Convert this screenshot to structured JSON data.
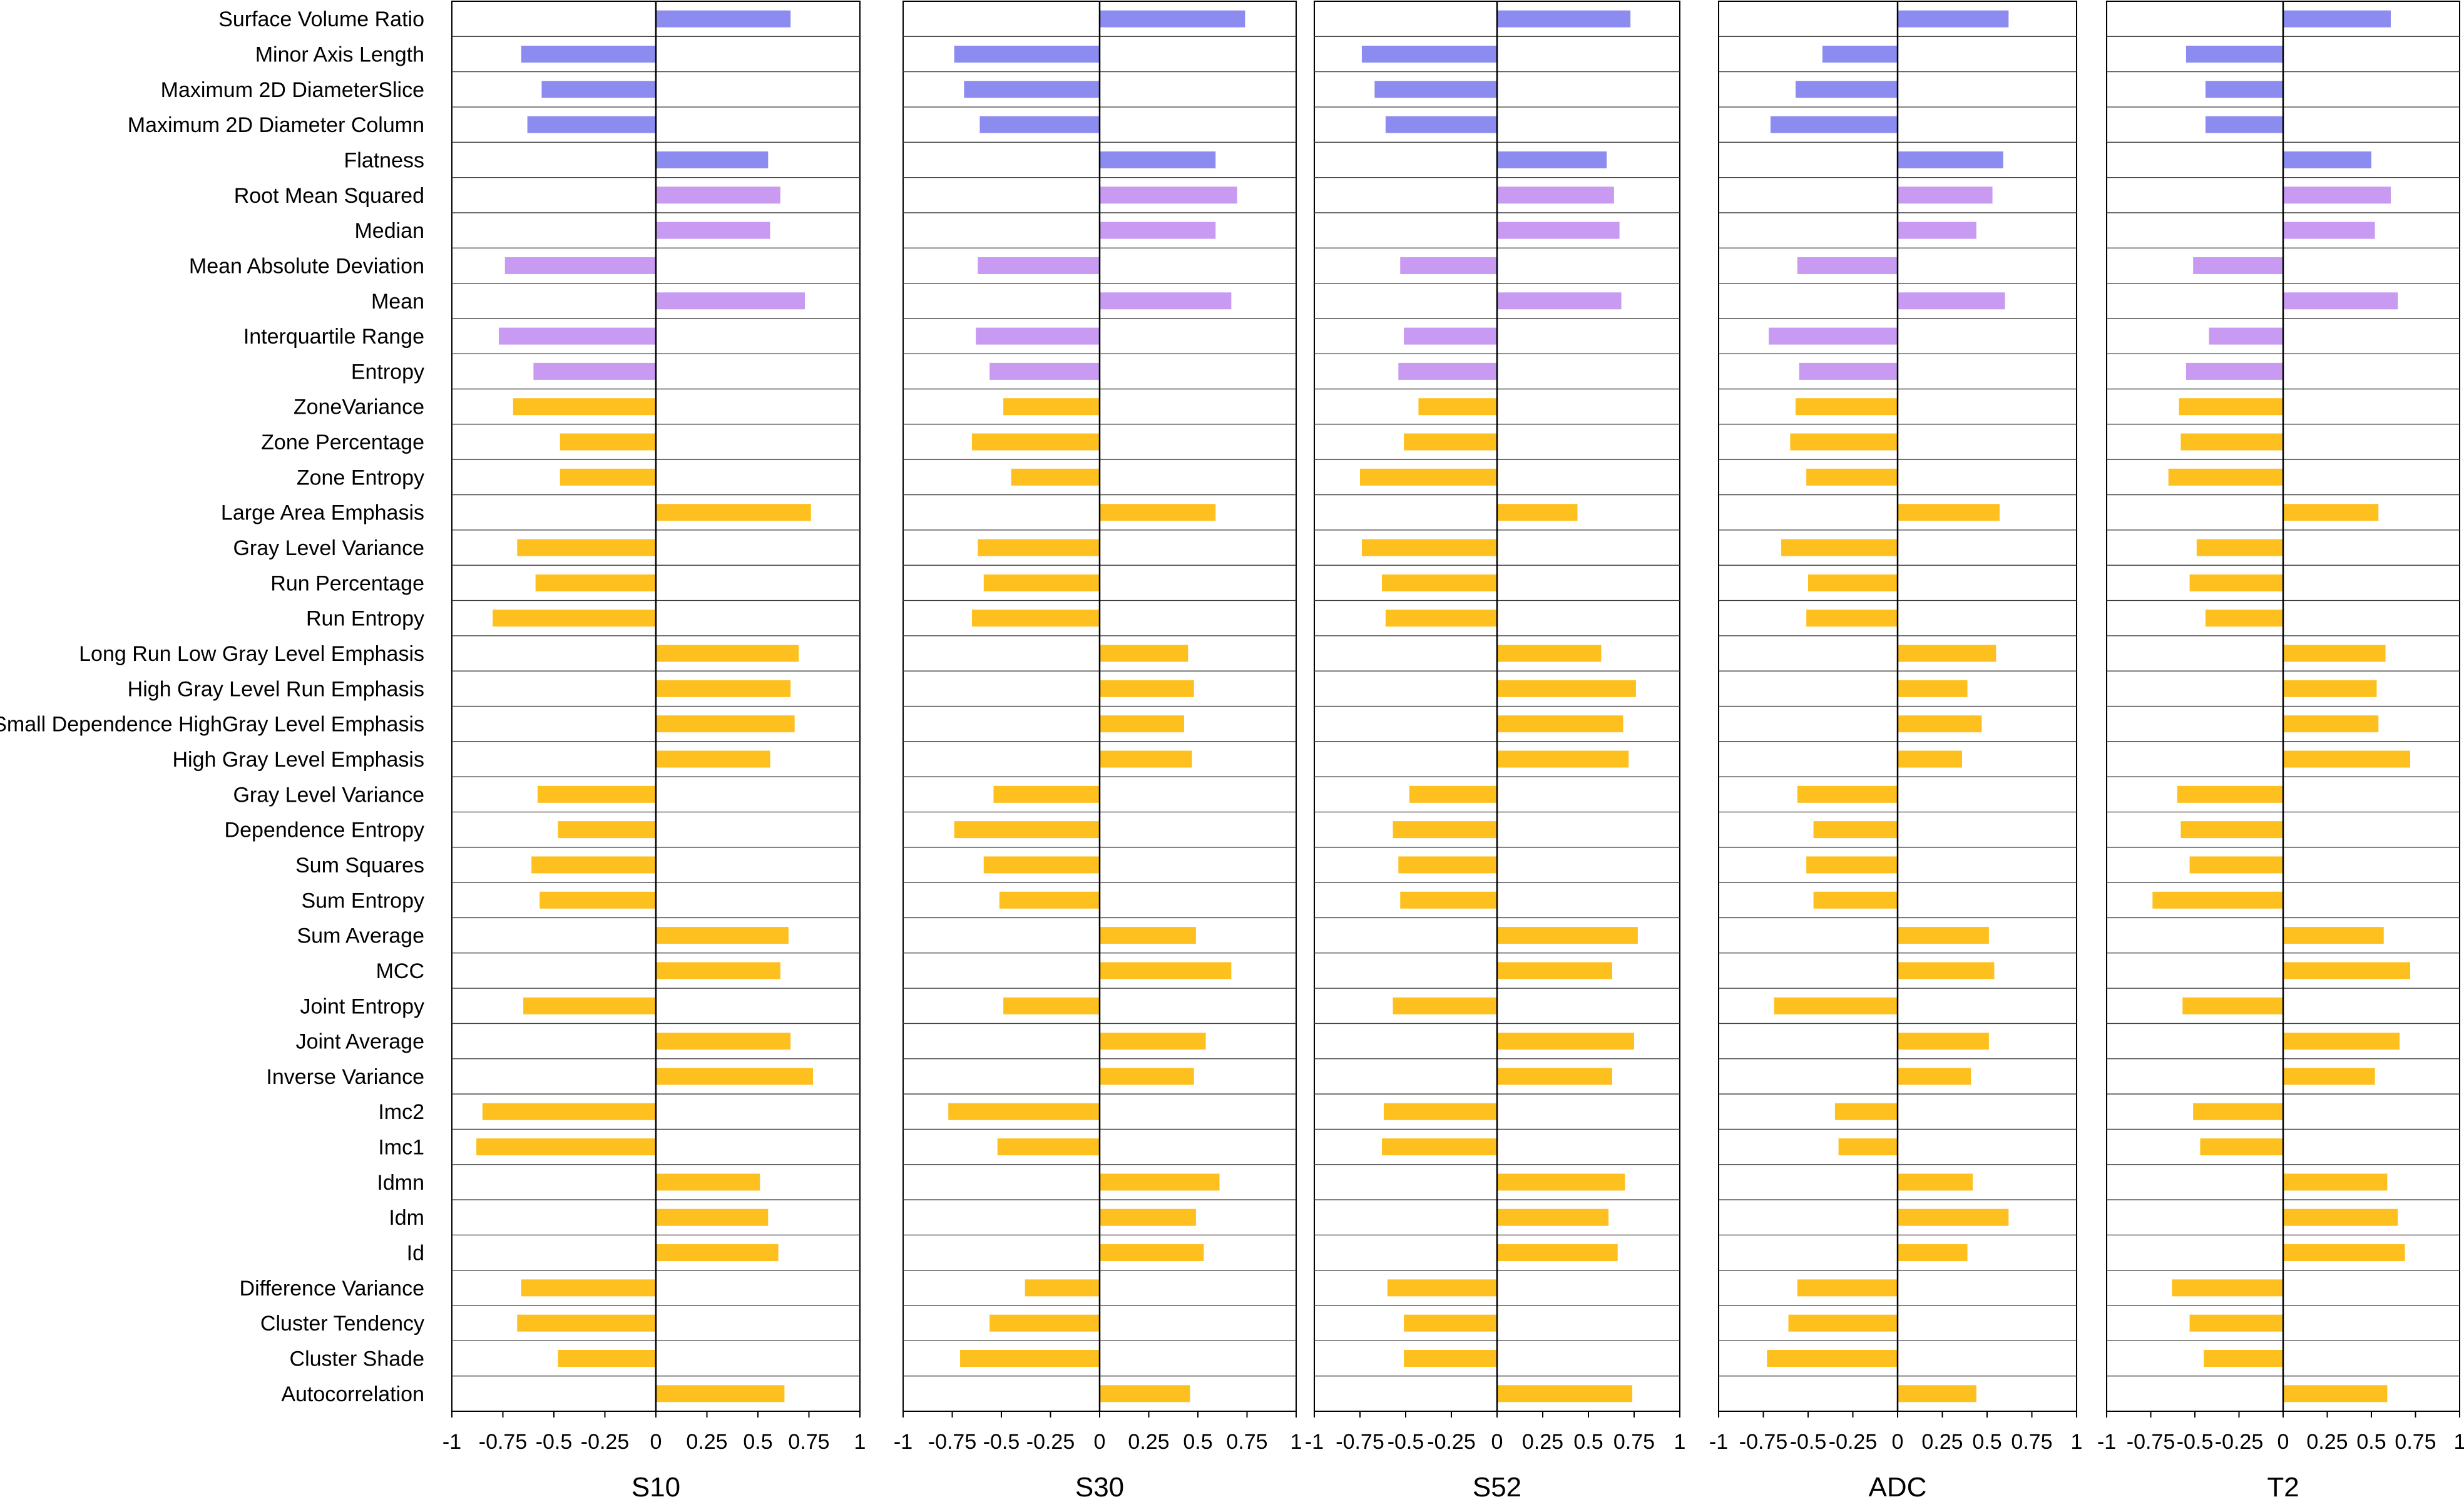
{
  "chart_data": {
    "type": "bar",
    "orientation": "horizontal",
    "title": "",
    "xlim": [
      -1,
      1
    ],
    "x_ticks": [
      "-1",
      "-0.75",
      "-0.5",
      "-0.25",
      "0",
      "0.25",
      "0.5",
      "0.75",
      "1"
    ],
    "grid": "horizontal row lines",
    "colors": {
      "shape": "#8c8cf0",
      "firstorder": "#c89af2",
      "texture": "#fdc01e"
    },
    "categories": [
      "Surface Volume Ratio",
      "Minor Axis Length",
      "Maximum 2D DiameterSlice",
      "Maximum 2D Diameter Column",
      "Flatness",
      "Root Mean Squared",
      "Median",
      "Mean Absolute Deviation",
      "Mean",
      "Interquartile Range",
      "Entropy",
      "ZoneVariance",
      "Zone Percentage",
      "Zone Entropy",
      "Large Area Emphasis",
      "Gray Level Variance",
      "Run Percentage",
      "Run Entropy",
      "Long Run Low Gray Level Emphasis",
      "High Gray Level Run Emphasis",
      "Small Dependence HighGray Level Emphasis",
      "High Gray Level Emphasis",
      "Gray Level Variance",
      "Dependence Entropy",
      "Sum Squares",
      "Sum Entropy",
      "Sum Average",
      "MCC",
      "Joint Entropy",
      "Joint Average",
      "Inverse Variance",
      "Imc2",
      "Imc1",
      "Idmn",
      "Idm",
      "Id",
      "Difference Variance",
      "Cluster Tendency",
      "Cluster Shade",
      "Autocorrelation"
    ],
    "category_groups": [
      "shape",
      "shape",
      "shape",
      "shape",
      "shape",
      "firstorder",
      "firstorder",
      "firstorder",
      "firstorder",
      "firstorder",
      "firstorder",
      "texture",
      "texture",
      "texture",
      "texture",
      "texture",
      "texture",
      "texture",
      "texture",
      "texture",
      "texture",
      "texture",
      "texture",
      "texture",
      "texture",
      "texture",
      "texture",
      "texture",
      "texture",
      "texture",
      "texture",
      "texture",
      "texture",
      "texture",
      "texture",
      "texture",
      "texture",
      "texture",
      "texture",
      "texture"
    ],
    "series": [
      {
        "name": "S10",
        "values": [
          0.66,
          -0.66,
          -0.56,
          -0.63,
          0.55,
          0.61,
          0.56,
          -0.74,
          0.73,
          -0.77,
          -0.6,
          -0.7,
          -0.47,
          -0.47,
          0.76,
          -0.68,
          -0.59,
          -0.8,
          0.7,
          0.66,
          0.68,
          0.56,
          -0.58,
          -0.48,
          -0.61,
          -0.57,
          0.65,
          0.61,
          -0.65,
          0.66,
          0.77,
          -0.85,
          -0.88,
          0.51,
          0.55,
          0.6,
          -0.66,
          -0.68,
          -0.48,
          0.63
        ]
      },
      {
        "name": "S30",
        "values": [
          0.74,
          -0.74,
          -0.69,
          -0.61,
          0.59,
          0.7,
          0.59,
          -0.62,
          0.67,
          -0.63,
          -0.56,
          -0.49,
          -0.65,
          -0.45,
          0.59,
          -0.62,
          -0.59,
          -0.65,
          0.45,
          0.48,
          0.43,
          0.47,
          -0.54,
          -0.74,
          -0.59,
          -0.51,
          0.49,
          0.67,
          -0.49,
          0.54,
          0.48,
          -0.77,
          -0.52,
          0.61,
          0.49,
          0.53,
          -0.38,
          -0.56,
          -0.71,
          0.46
        ]
      },
      {
        "name": "S52",
        "values": [
          0.73,
          -0.74,
          -0.67,
          -0.61,
          0.6,
          0.64,
          0.67,
          -0.53,
          0.68,
          -0.51,
          -0.54,
          -0.43,
          -0.51,
          -0.75,
          0.44,
          -0.74,
          -0.63,
          -0.61,
          0.57,
          0.76,
          0.69,
          0.72,
          -0.48,
          -0.57,
          -0.54,
          -0.53,
          0.77,
          0.63,
          -0.57,
          0.75,
          0.63,
          -0.62,
          -0.63,
          0.7,
          0.61,
          0.66,
          -0.6,
          -0.51,
          -0.51,
          0.74
        ]
      },
      {
        "name": "ADC",
        "values": [
          0.62,
          -0.42,
          -0.57,
          -0.71,
          0.59,
          0.53,
          0.44,
          -0.56,
          0.6,
          -0.72,
          -0.55,
          -0.57,
          -0.6,
          -0.51,
          0.57,
          -0.65,
          -0.5,
          -0.51,
          0.55,
          0.39,
          0.47,
          0.36,
          -0.56,
          -0.47,
          -0.51,
          -0.47,
          0.51,
          0.54,
          -0.69,
          0.51,
          0.41,
          -0.35,
          -0.33,
          0.42,
          0.62,
          0.39,
          -0.56,
          -0.61,
          -0.73,
          0.44
        ]
      },
      {
        "name": "T2",
        "values": [
          0.61,
          -0.55,
          -0.44,
          -0.44,
          0.5,
          0.61,
          0.52,
          -0.51,
          0.65,
          -0.42,
          -0.55,
          -0.59,
          -0.58,
          -0.65,
          0.54,
          -0.49,
          -0.53,
          -0.44,
          0.58,
          0.53,
          0.54,
          0.72,
          -0.6,
          -0.58,
          -0.53,
          -0.74,
          0.57,
          0.72,
          -0.57,
          0.66,
          0.52,
          -0.51,
          -0.47,
          0.59,
          0.65,
          0.69,
          -0.63,
          -0.53,
          -0.45,
          0.59
        ]
      }
    ]
  }
}
